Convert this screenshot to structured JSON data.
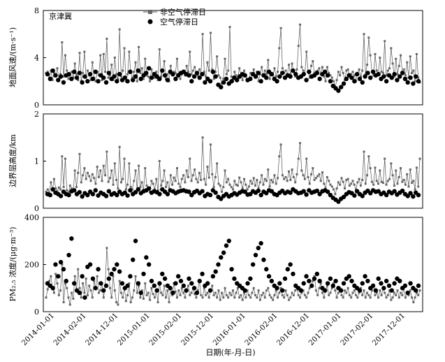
{
  "figure": {
    "xlabel": "日期(年-月-日)",
    "x_ticks": [
      "2014-01-01",
      "2014-02-01",
      "2014-12-01",
      "2015-01-01",
      "2015-02-01",
      "2015-12-01",
      "2016-01-01",
      "2016-02-01",
      "2016-12-01",
      "2017-01-01",
      "2017-02-01",
      "2017-12-01"
    ],
    "region_label": "京津冀",
    "legend": {
      "non_stagnant": "非空气停滞日",
      "stagnant": "空气停滞日"
    },
    "colors": {
      "non_stagnant": "#666666",
      "stagnant": "#000000",
      "line": "#555555"
    }
  },
  "chart_data": [
    {
      "type": "line",
      "panel": "wind",
      "ylabel": "地面风速/(m·s⁻¹)",
      "y_ticks": [
        "0",
        "4",
        "8"
      ],
      "ylim": [
        0,
        8
      ],
      "x_categories": [
        "2014-01-01",
        "2014-02-01",
        "2014-12-01",
        "2015-01-01",
        "2015-02-01",
        "2015-12-01",
        "2016-01-01",
        "2016-02-01",
        "2016-12-01",
        "2017-01-01",
        "2017-02-01",
        "2017-12-01"
      ],
      "series_values": [
        2.7,
        2.8,
        2.2,
        2.9,
        2.1,
        2.7,
        2.5,
        3.1,
        2.2,
        2.6,
        5.3,
        2.4,
        4.2,
        2.9,
        2.2,
        2.5,
        2.8,
        2.3,
        3.5,
        2.6,
        2.1,
        4.4,
        2.0,
        2.7,
        4.5,
        2.3,
        2.9,
        2.5,
        2.1,
        3.6,
        2.3,
        2.0,
        2.8,
        2.5,
        4.2,
        2.1,
        4.3,
        2.8,
        5.6,
        2.3,
        2.5,
        3.4,
        2.1,
        4.0,
        2.6,
        2.2,
        6.4,
        2.4,
        2.9,
        4.8,
        2.0,
        2.6,
        4.5,
        2.7,
        2.3,
        2.8,
        3.6,
        2.0,
        4.9,
        2.7,
        3.1,
        2.2,
        3.9,
        2.5,
        2.4,
        2.0,
        3.0,
        2.6,
        2.3,
        2.8,
        2.1,
        4.7,
        2.4,
        2.9,
        3.7,
        2.2,
        2.6,
        2.0,
        3.3,
        2.5,
        2.8,
        2.7,
        3.9,
        2.4,
        2.2,
        2.6,
        2.9,
        2.5,
        3.3,
        2.8,
        4.5,
        2.6,
        2.9,
        3.2,
        2.7,
        2.5,
        3.0,
        2.6,
        6.0,
        2.8,
        2.4,
        3.6,
        2.9,
        6.1,
        3.0,
        2.2,
        2.8,
        4.1,
        2.5,
        2.3,
        1.8,
        2.2,
        3.9,
        2.6,
        2.9,
        6.6,
        2.4,
        2.0,
        2.8,
        2.5,
        2.3,
        3.1,
        2.6,
        2.1,
        2.9,
        2.4,
        2.0,
        2.2,
        2.7,
        2.5,
        3.0,
        2.3,
        2.8,
        2.0,
        2.6,
        3.2,
        2.4,
        2.9,
        2.6,
        3.8,
        2.2,
        2.7,
        2.5,
        3.1,
        2.4,
        2.8,
        4.8,
        6.5,
        3.1,
        2.7,
        2.9,
        2.5,
        3.4,
        2.6,
        3.5,
        2.8,
        2.4,
        3.0,
        5.0,
        6.8,
        3.2,
        2.9,
        2.6,
        4.5,
        2.8,
        2.3,
        3.3,
        3.7,
        2.7,
        2.8,
        2.9,
        3.1,
        2.6,
        3.2,
        2.4,
        2.0,
        3.2,
        2.7,
        2.5,
        2.3,
        2.0,
        1.5,
        2.1,
        2.8,
        2.5,
        3.2,
        2.7,
        2.1,
        2.9,
        3.0,
        2.4,
        2.6,
        2.8,
        2.5,
        2.0,
        2.7,
        3.0,
        2.4,
        2.9,
        6.0,
        2.6,
        3.4,
        5.7,
        4.2,
        2.8,
        2.5,
        4.3,
        2.9,
        2.6,
        4.0,
        2.8,
        2.7,
        5.4,
        2.5,
        2.9,
        3.1,
        4.8,
        3.5,
        2.4,
        3.9,
        2.6,
        3.3,
        4.2,
        2.8,
        3.0,
        2.5,
        3.6,
        2.3,
        4.1,
        2.7,
        2.9,
        2.0,
        4.3,
        2.3,
        1.9
      ],
      "dot_values": [
        2.6,
        2.2,
        2.9,
        2.5,
        2.1,
        2.4,
        1.9,
        2.5,
        2.6,
        2.2,
        2.8,
        2.3,
        2.7,
        1.9,
        2.4,
        2.0,
        2.6,
        2.2,
        2.8,
        2.0,
        2.5,
        2.3,
        1.9,
        2.7,
        2.2,
        2.4,
        2.0,
        2.6,
        2.1,
        2.3,
        2.0,
        2.8,
        2.1,
        2.4,
        2.9,
        2.2,
        2.5,
        2.7,
        3.1,
        2.3,
        2.6,
        2.4,
        2.2,
        2.9,
        2.5,
        2.1,
        2.8,
        2.6,
        2.2,
        2.5,
        2.7,
        2.8,
        2.6,
        2.5,
        2.0,
        2.4,
        2.7,
        2.3,
        2.6,
        1.9,
        2.2,
        2.0,
        2.8,
        2.4,
        1.7,
        1.5,
        1.9,
        2.2,
        1.8,
        2.0,
        2.3,
        2.1,
        2.4,
        2.6,
        2.5,
        2.1,
        2.2,
        2.6,
        2.4,
        2.7,
        2.0,
        2.5,
        2.3,
        2.8,
        2.6,
        2.2,
        2.0,
        2.4,
        2.7,
        2.3,
        2.5,
        2.4,
        2.9,
        2.6,
        2.3,
        2.4,
        2.6,
        2.1,
        2.8,
        2.4,
        2.5,
        2.7,
        2.2,
        2.6,
        2.8,
        2.5,
        2.0,
        1.6,
        1.4,
        1.2,
        1.5,
        1.8,
        2.2,
        2.5,
        2.3,
        2.0,
        2.6,
        2.2,
        1.9,
        2.4,
        2.7,
        2.3,
        2.8,
        2.5,
        2.6,
        2.2,
        2.4,
        2.0,
        2.5,
        2.3,
        2.6,
        2.1,
        2.4,
        2.7,
        2.2,
        1.9,
        2.3,
        1.8,
        2.4,
        2.0
      ],
      "dot_positions": [
        2,
        5,
        8,
        11,
        14,
        17,
        20,
        23,
        26,
        29,
        32,
        35,
        38,
        41,
        44,
        47,
        50,
        53,
        56,
        59,
        62,
        65,
        68,
        71,
        74,
        77,
        80,
        83,
        86,
        89,
        92,
        95,
        98,
        101,
        104,
        107,
        110,
        113,
        116,
        119,
        122,
        125,
        128,
        131,
        134,
        137,
        140,
        143,
        146,
        149,
        152,
        155,
        158,
        161,
        164,
        167,
        170,
        173,
        176,
        179,
        182,
        185,
        188,
        191,
        194,
        197,
        200,
        203,
        206,
        209,
        212,
        215,
        218,
        221,
        224,
        227,
        230,
        233,
        236,
        239,
        242,
        245,
        248,
        251,
        254,
        257,
        260,
        263,
        266,
        269,
        272,
        275,
        278,
        281,
        284,
        287,
        290,
        293,
        296,
        299,
        302,
        305,
        308,
        311,
        314,
        317,
        320,
        323,
        326,
        329,
        332,
        335,
        338,
        341,
        344,
        347,
        350,
        353,
        356,
        359,
        362,
        365,
        368,
        371,
        374,
        377,
        380,
        383,
        386,
        389,
        392,
        395,
        398,
        401,
        404,
        407,
        410,
        413,
        416,
        419,
        422
      ]
    },
    {
      "type": "line",
      "panel": "blh",
      "ylabel": "边界层高度/km",
      "y_ticks": [
        "0",
        "1",
        "2"
      ],
      "ylim": [
        0,
        2
      ],
      "series_values": [
        0.35,
        0.4,
        0.33,
        0.55,
        0.38,
        0.62,
        0.42,
        0.36,
        0.44,
        0.4,
        1.1,
        0.45,
        1.05,
        0.38,
        0.33,
        0.48,
        0.42,
        0.36,
        0.8,
        0.45,
        0.75,
        1.15,
        0.55,
        0.7,
        0.85,
        0.62,
        0.75,
        0.68,
        0.58,
        0.72,
        0.64,
        0.52,
        0.88,
        0.66,
        0.8,
        0.58,
        0.9,
        0.7,
        1.2,
        0.56,
        0.64,
        0.8,
        0.5,
        0.95,
        0.6,
        0.42,
        1.3,
        0.55,
        0.62,
        1.05,
        0.4,
        0.5,
        0.95,
        0.45,
        0.4,
        0.58,
        0.8,
        0.4,
        0.9,
        0.45,
        0.55,
        0.38,
        0.85,
        0.48,
        0.42,
        0.35,
        0.58,
        0.52,
        0.4,
        0.62,
        0.38,
        1.0,
        0.48,
        0.58,
        0.8,
        0.45,
        0.55,
        0.38,
        0.7,
        0.5,
        0.65,
        0.58,
        0.85,
        0.52,
        0.45,
        0.62,
        0.7,
        0.55,
        0.8,
        0.66,
        1.05,
        0.58,
        0.7,
        0.82,
        0.62,
        0.55,
        0.75,
        0.6,
        1.5,
        0.62,
        0.5,
        0.88,
        0.65,
        1.35,
        0.72,
        0.45,
        0.66,
        0.95,
        0.52,
        0.48,
        0.35,
        0.45,
        0.8,
        0.55,
        0.62,
        0.5,
        0.45,
        0.4,
        0.58,
        0.5,
        0.48,
        0.65,
        0.55,
        0.42,
        0.62,
        0.5,
        0.4,
        0.46,
        0.58,
        0.52,
        0.64,
        0.48,
        0.6,
        0.42,
        0.55,
        0.7,
        0.5,
        0.62,
        0.58,
        0.82,
        0.46,
        0.6,
        0.55,
        0.7,
        0.52,
        0.64,
        1.1,
        1.35,
        0.7,
        0.62,
        0.66,
        0.58,
        0.78,
        0.6,
        0.82,
        0.66,
        0.55,
        0.72,
        1.05,
        1.38,
        0.8,
        0.7,
        0.62,
        1.05,
        0.66,
        0.52,
        0.72,
        0.85,
        0.6,
        0.64,
        0.68,
        0.72,
        0.58,
        0.76,
        0.52,
        0.42,
        0.66,
        0.58,
        0.5,
        0.46,
        0.4,
        0.3,
        0.42,
        0.55,
        0.5,
        0.64,
        0.56,
        0.42,
        0.6,
        0.62,
        0.48,
        0.52,
        0.58,
        0.5,
        0.4,
        0.55,
        0.62,
        0.48,
        0.6,
        1.2,
        0.52,
        0.7,
        1.1,
        0.85,
        0.56,
        0.5,
        0.86,
        0.58,
        0.52,
        0.8,
        0.56,
        0.54,
        1.05,
        0.5,
        0.58,
        0.62,
        0.95,
        0.7,
        0.48,
        0.8,
        0.52,
        0.66,
        0.85,
        0.56,
        0.6,
        0.5,
        0.72,
        0.46,
        0.82,
        0.54,
        0.58,
        0.4,
        0.86,
        0.46,
        1.05
      ],
      "dot_values": [
        0.3,
        0.28,
        0.4,
        0.33,
        0.3,
        0.26,
        0.35,
        0.3,
        0.28,
        0.36,
        0.38,
        0.3,
        0.34,
        0.25,
        0.32,
        0.28,
        0.35,
        0.3,
        0.38,
        0.27,
        0.33,
        0.3,
        0.26,
        0.36,
        0.29,
        0.32,
        0.28,
        0.35,
        0.3,
        0.33,
        0.27,
        0.38,
        0.3,
        0.34,
        0.4,
        0.32,
        0.36,
        0.38,
        0.42,
        0.33,
        0.36,
        0.34,
        0.3,
        0.4,
        0.35,
        0.3,
        0.38,
        0.36,
        0.32,
        0.35,
        0.37,
        0.38,
        0.36,
        0.35,
        0.28,
        0.34,
        0.37,
        0.32,
        0.36,
        0.26,
        0.3,
        0.28,
        0.38,
        0.33,
        0.24,
        0.2,
        0.26,
        0.3,
        0.25,
        0.28,
        0.32,
        0.29,
        0.33,
        0.36,
        0.35,
        0.29,
        0.3,
        0.36,
        0.33,
        0.37,
        0.28,
        0.35,
        0.32,
        0.38,
        0.36,
        0.3,
        0.28,
        0.33,
        0.37,
        0.32,
        0.35,
        0.33,
        0.4,
        0.36,
        0.32,
        0.33,
        0.36,
        0.29,
        0.38,
        0.33,
        0.35,
        0.37,
        0.3,
        0.36,
        0.38,
        0.35,
        0.28,
        0.22,
        0.18,
        0.14,
        0.2,
        0.24,
        0.3,
        0.34,
        0.32,
        0.27,
        0.36,
        0.3,
        0.26,
        0.33,
        0.37,
        0.32,
        0.38,
        0.35,
        0.36,
        0.3,
        0.33,
        0.28,
        0.35,
        0.32,
        0.36,
        0.29,
        0.33,
        0.37,
        0.3,
        0.26,
        0.32,
        0.25,
        0.33,
        0.28
      ]
    },
    {
      "type": "line",
      "panel": "pm25",
      "ylabel": "PM₂.₅ 浓度/(μg·m⁻³)",
      "y_ticks": [
        "0",
        "200",
        "400"
      ],
      "ylim": [
        0,
        400
      ],
      "series_values": [
        60,
        95,
        130,
        150,
        100,
        80,
        160,
        120,
        70,
        90,
        200,
        40,
        120,
        100,
        60,
        30,
        80,
        55,
        150,
        90,
        180,
        100,
        60,
        120,
        80,
        140,
        70,
        110,
        90,
        60,
        130,
        100,
        150,
        80,
        90,
        120,
        60,
        110,
        270,
        180,
        100,
        60,
        150,
        90,
        40,
        30,
        130,
        80,
        60,
        100,
        45,
        70,
        120,
        40,
        60,
        90,
        150,
        80,
        110,
        60,
        90,
        55,
        120,
        70,
        80,
        50,
        100,
        75,
        60,
        90,
        40,
        120,
        80,
        70,
        110,
        60,
        90,
        40,
        100,
        70,
        120,
        85,
        60,
        90,
        70,
        100,
        80,
        60,
        90,
        110,
        70,
        80,
        100,
        75,
        60,
        90,
        130,
        70,
        60,
        100,
        70,
        80,
        60,
        90,
        110,
        70,
        80,
        60,
        90,
        50,
        80,
        60,
        100,
        70,
        60,
        80,
        70,
        90,
        60,
        80,
        100,
        60,
        70,
        50,
        80,
        60,
        90,
        70,
        60,
        80,
        100,
        70,
        60,
        90,
        50,
        70,
        80,
        60,
        90,
        100,
        70,
        60,
        50,
        70,
        90,
        60,
        80,
        100,
        70,
        60,
        90,
        70,
        50,
        60,
        80,
        70,
        90,
        100,
        70,
        60,
        80,
        90,
        70,
        60,
        80,
        100,
        110,
        130,
        150,
        90,
        70,
        100,
        120,
        80,
        60,
        90,
        110,
        70,
        80,
        100,
        120,
        90,
        60,
        80,
        100,
        70,
        60,
        90,
        80,
        100,
        70,
        60,
        80,
        90,
        70,
        60,
        80,
        100,
        70,
        90,
        60,
        80,
        70,
        60,
        90,
        110,
        70,
        80,
        60,
        90,
        70,
        100,
        80,
        60,
        70,
        90,
        50,
        60,
        80,
        70,
        90,
        60,
        80,
        70,
        100,
        60,
        80,
        70,
        90,
        60,
        40,
        60,
        80,
        70,
        90
      ],
      "dot_values": [
        120,
        110,
        100,
        200,
        150,
        210,
        180,
        130,
        240,
        310,
        120,
        90,
        80,
        150,
        60,
        190,
        200,
        140,
        100,
        180,
        120,
        90,
        110,
        140,
        160,
        180,
        200,
        170,
        120,
        100,
        110,
        150,
        220,
        300,
        120,
        80,
        160,
        230,
        200,
        130,
        110,
        90,
        120,
        160,
        140,
        110,
        100,
        80,
        120,
        150,
        130,
        110,
        90,
        140,
        120,
        100,
        80,
        130,
        160,
        110,
        120,
        90,
        150,
        170,
        200,
        230,
        250,
        280,
        300,
        180,
        140,
        120,
        110,
        100,
        90,
        120,
        140,
        200,
        240,
        270,
        290,
        220,
        180,
        150,
        130,
        110,
        100,
        120,
        90,
        140,
        180,
        200,
        160,
        110,
        100,
        90,
        120,
        150,
        130,
        110,
        140,
        160,
        130,
        100,
        90,
        120,
        140,
        110,
        130,
        100,
        90,
        120,
        140,
        150,
        130,
        110,
        100,
        90,
        120,
        150,
        130,
        100,
        110,
        90,
        140,
        120,
        100,
        130,
        110,
        90,
        120,
        140,
        130,
        100,
        110,
        80,
        120,
        100,
        90,
        110
      ]
    }
  ]
}
